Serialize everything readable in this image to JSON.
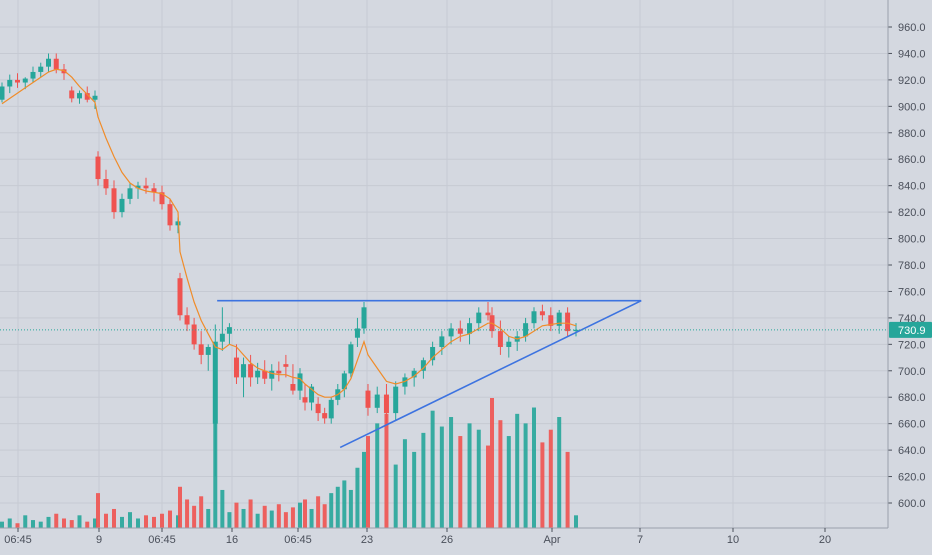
{
  "colors": {
    "background": "#d4d8e0",
    "grid": "#c6cad3",
    "axis_text": "#4a4f5a",
    "up": "#26a69a",
    "down": "#ef5350",
    "ma": "#f08c2a",
    "trendline": "#3d73e0",
    "price_line": "#26a69a",
    "price_label_bg": "#26a69a",
    "price_label_text": "#ffffff"
  },
  "chart_data": {
    "type": "candlestick",
    "y_axis": {
      "ticks": [
        600,
        620,
        640,
        660,
        680,
        700,
        720,
        740,
        760,
        780,
        800,
        820,
        840,
        860,
        880,
        900,
        920,
        940,
        960
      ],
      "tick_labels": [
        "600.0",
        "620.0",
        "640.0",
        "660.0",
        "680.0",
        "700.0",
        "720.0",
        "740.0",
        "760.0",
        "780.0",
        "800.0",
        "820.0",
        "840.0",
        "860.0",
        "880.0",
        "900.0",
        "920.0",
        "940.0",
        "960.0"
      ],
      "range": [
        580,
        973
      ]
    },
    "x_axis": {
      "labels": [
        "06:45",
        "9",
        "06:45",
        "16",
        "06:45",
        "23",
        "26",
        "Apr",
        "7",
        "10",
        "20"
      ]
    },
    "last_price": {
      "value": 730.9,
      "label": "730.9"
    },
    "candles": [
      [
        905,
        918,
        903,
        915
      ],
      [
        915,
        924,
        910,
        920
      ],
      [
        920,
        925,
        914,
        918
      ],
      [
        918,
        922,
        913,
        921
      ],
      [
        921,
        930,
        918,
        926
      ],
      [
        926,
        933,
        922,
        930
      ],
      [
        930,
        940,
        926,
        936
      ],
      [
        936,
        940,
        925,
        928
      ],
      [
        928,
        932,
        920,
        925
      ],
      [
        912,
        915,
        903,
        906
      ],
      [
        906,
        912,
        902,
        910
      ],
      [
        910,
        915,
        903,
        905
      ],
      [
        905,
        912,
        898,
        908
      ],
      [
        862,
        866,
        840,
        845
      ],
      [
        845,
        852,
        833,
        838
      ],
      [
        838,
        844,
        815,
        820
      ],
      [
        820,
        834,
        816,
        830
      ],
      [
        830,
        842,
        826,
        838
      ],
      [
        838,
        843,
        830,
        840
      ],
      [
        840,
        846,
        834,
        838
      ],
      [
        838,
        842,
        828,
        835
      ],
      [
        835,
        840,
        822,
        826
      ],
      [
        826,
        830,
        806,
        810
      ],
      [
        810,
        816,
        804,
        813
      ],
      [
        770,
        774,
        738,
        742
      ],
      [
        742,
        748,
        730,
        735
      ],
      [
        735,
        740,
        716,
        720
      ],
      [
        720,
        730,
        705,
        712
      ],
      [
        712,
        720,
        700,
        718
      ],
      [
        660,
        735,
        620,
        722
      ],
      [
        722,
        748,
        715,
        728
      ],
      [
        728,
        736,
        720,
        733
      ],
      [
        710,
        720,
        690,
        695
      ],
      [
        695,
        710,
        680,
        705
      ],
      [
        705,
        712,
        688,
        695
      ],
      [
        695,
        706,
        690,
        700
      ],
      [
        700,
        708,
        690,
        694
      ],
      [
        694,
        705,
        685,
        700
      ],
      [
        700,
        707,
        692,
        698
      ],
      [
        705,
        712,
        695,
        703
      ],
      [
        690,
        705,
        682,
        685
      ],
      [
        685,
        702,
        678,
        698
      ],
      [
        680,
        690,
        670,
        676
      ],
      [
        676,
        690,
        670,
        688
      ],
      [
        675,
        680,
        662,
        668
      ],
      [
        668,
        672,
        660,
        664
      ],
      [
        664,
        680,
        660,
        678
      ],
      [
        678,
        690,
        674,
        686
      ],
      [
        686,
        700,
        680,
        698
      ],
      [
        698,
        722,
        695,
        720
      ],
      [
        725,
        740,
        718,
        732
      ],
      [
        732,
        752,
        728,
        748
      ],
      [
        685,
        690,
        666,
        672
      ],
      [
        672,
        688,
        668,
        682
      ],
      [
        682,
        690,
        660,
        668
      ],
      [
        668,
        692,
        662,
        688
      ],
      [
        688,
        698,
        682,
        695
      ],
      [
        695,
        702,
        688,
        700
      ],
      [
        700,
        710,
        694,
        708
      ],
      [
        708,
        722,
        704,
        718
      ],
      [
        718,
        730,
        712,
        726
      ],
      [
        726,
        736,
        720,
        732
      ],
      [
        732,
        738,
        722,
        728
      ],
      [
        728,
        740,
        720,
        736
      ],
      [
        736,
        748,
        730,
        744
      ],
      [
        744,
        752,
        738,
        742
      ],
      [
        742,
        748,
        725,
        730
      ],
      [
        730,
        738,
        712,
        718
      ],
      [
        718,
        726,
        710,
        722
      ],
      [
        722,
        730,
        715,
        726
      ],
      [
        726,
        740,
        722,
        736
      ],
      [
        736,
        748,
        732,
        745
      ],
      [
        745,
        750,
        738,
        742
      ],
      [
        742,
        748,
        730,
        734
      ],
      [
        734,
        746,
        728,
        744
      ],
      [
        744,
        748,
        726,
        730
      ],
      [
        730,
        736,
        726,
        731
      ]
    ],
    "volumes": [
      4,
      6,
      3,
      8,
      5,
      4,
      7,
      9,
      6,
      5,
      8,
      4,
      6,
      22,
      9,
      12,
      7,
      10,
      6,
      8,
      7,
      9,
      11,
      8,
      26,
      18,
      14,
      20,
      12,
      76,
      24,
      10,
      16,
      12,
      18,
      9,
      14,
      11,
      15,
      10,
      13,
      16,
      18,
      12,
      20,
      15,
      22,
      26,
      30,
      24,
      38,
      48,
      58,
      66,
      72,
      40,
      56,
      48,
      60,
      74,
      64,
      70,
      58,
      66,
      62,
      52,
      82,
      68,
      58,
      72,
      66,
      76,
      54,
      62,
      70,
      48,
      8
    ],
    "ma_series": [
      902,
      906,
      910,
      914,
      918,
      922,
      926,
      928,
      927,
      922,
      915,
      909,
      903,
      892,
      876,
      862,
      850,
      842,
      838,
      836,
      835,
      834,
      830,
      820,
      790,
      770,
      752,
      738,
      728,
      718,
      716,
      720,
      718,
      712,
      706,
      702,
      700,
      698,
      697,
      697,
      695,
      694,
      690,
      686,
      682,
      680,
      680,
      682,
      686,
      694,
      708,
      722,
      712,
      702,
      692,
      690,
      692,
      696,
      702,
      710,
      716,
      722,
      726,
      728,
      732,
      736,
      736,
      732,
      726,
      724,
      726,
      730,
      734,
      735,
      736,
      736,
      734
    ],
    "trendlines": [
      {
        "name": "resistance",
        "from": [
          0.233,
          753
        ],
        "to": [
          0.688,
          753
        ]
      },
      {
        "name": "support",
        "from": [
          0.365,
          642
        ],
        "to": [
          0.688,
          753
        ]
      }
    ]
  }
}
